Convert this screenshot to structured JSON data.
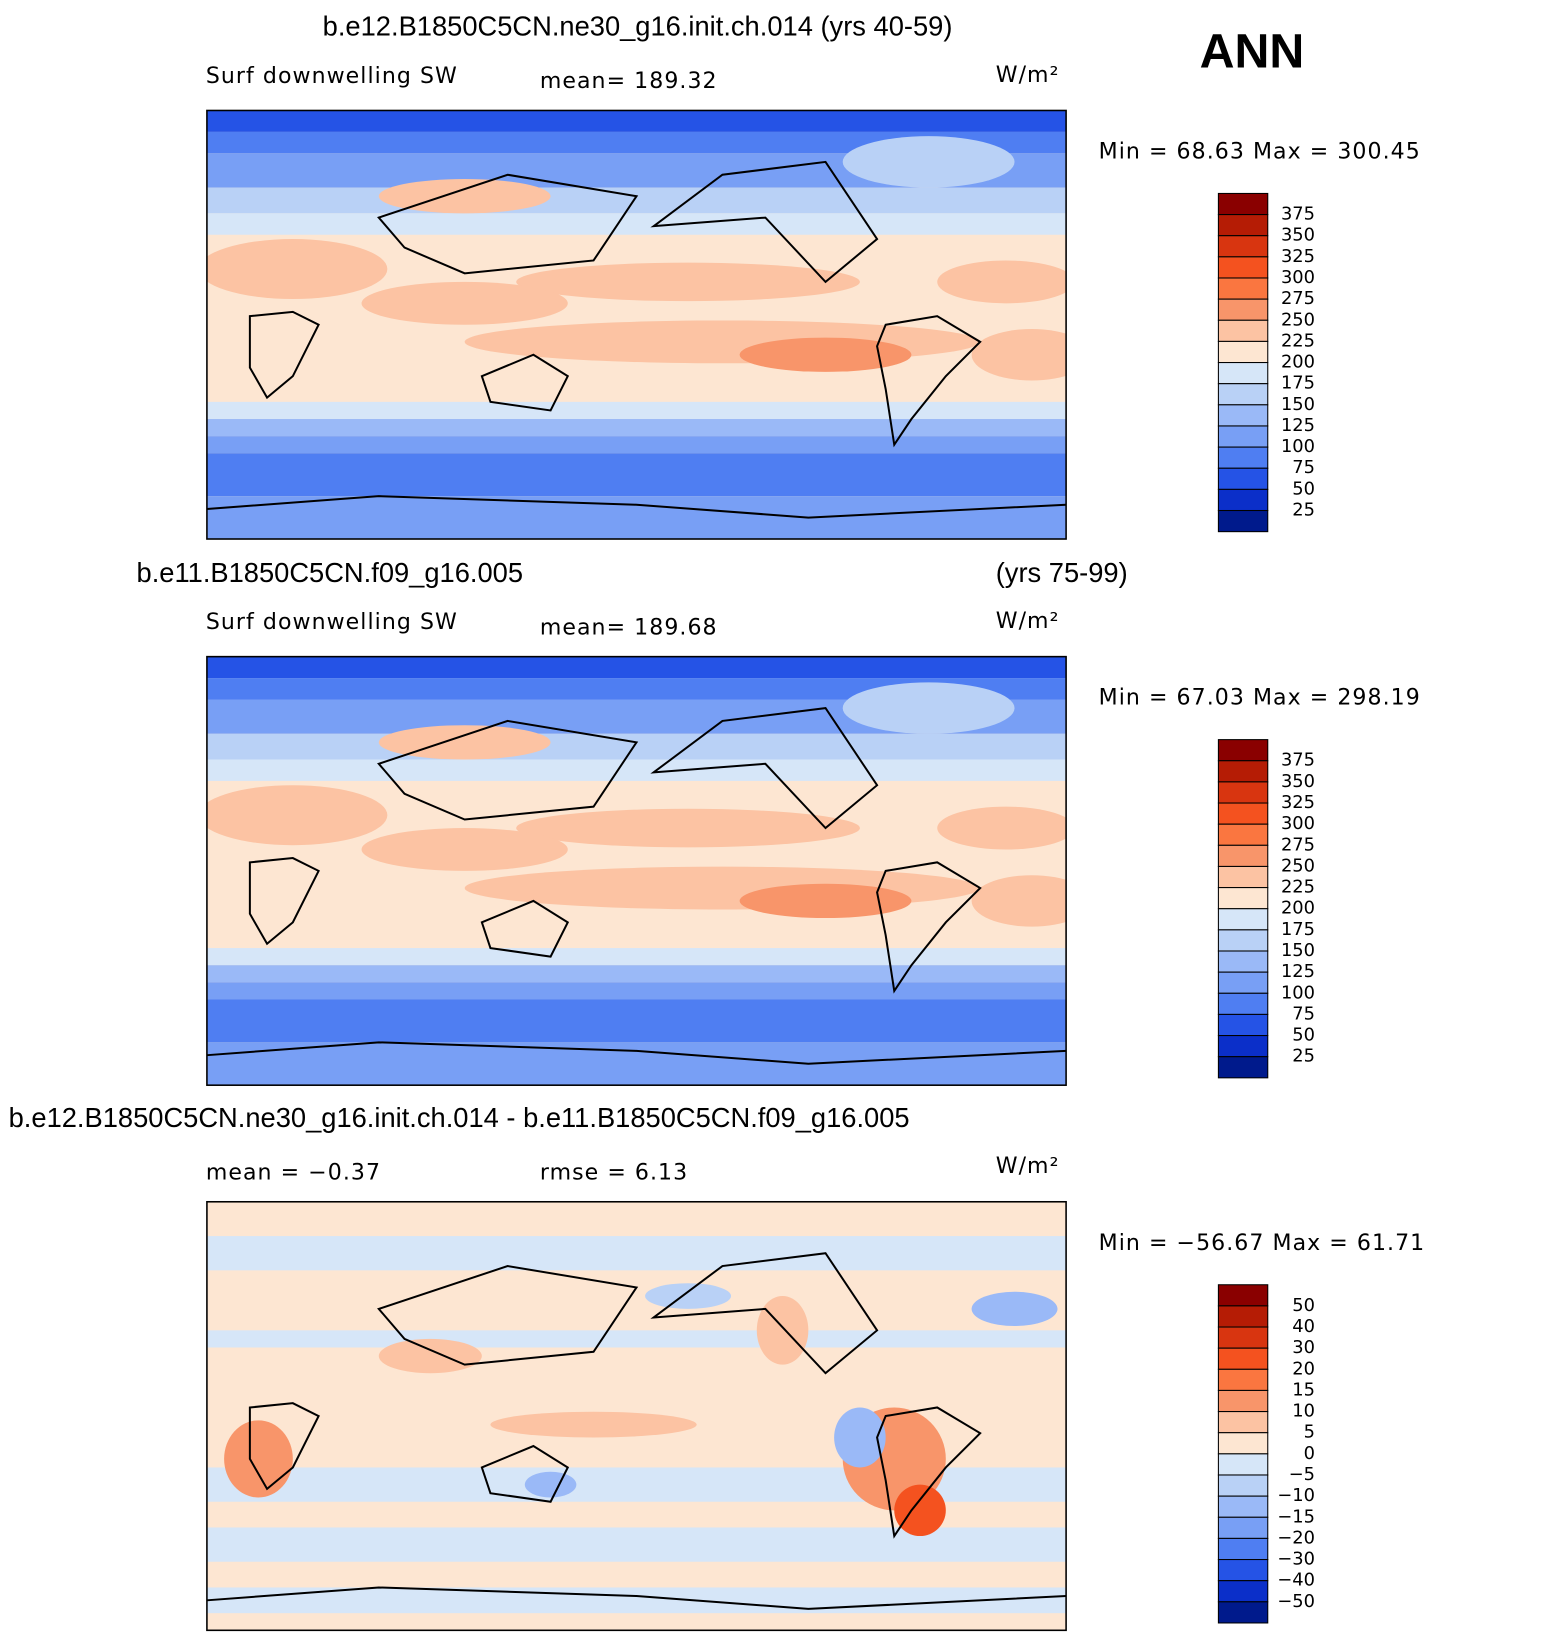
{
  "season": "ANN",
  "panels": [
    {
      "title": "b.e12.B1850C5CN.ne30_g16.init.ch.014 (yrs 40-59)",
      "variable": "Surf downwelling SW",
      "mean": "mean= 189.32",
      "units": "W/m²",
      "range": "Min = 68.63 Max = 300.45",
      "colorbar": {
        "levels": [
          "375",
          "350",
          "325",
          "300",
          "275",
          "250",
          "225",
          "200",
          "175",
          "150",
          "125",
          "100",
          "75",
          "50",
          "25"
        ],
        "colors": [
          "#8a0000",
          "#b51c05",
          "#d83510",
          "#f4521f",
          "#fa7640",
          "#f8956a",
          "#fcc3a3",
          "#fde6d2",
          "#d6e6f8",
          "#b9d1f6",
          "#9ab9f7",
          "#789ff5",
          "#4f7ef2",
          "#2553e6",
          "#0b2fc9",
          "#001a8c"
        ]
      }
    },
    {
      "title": "b.e11.B1850C5CN.f09_g16.005",
      "years": "(yrs 75-99)",
      "variable": "Surf downwelling SW",
      "mean": "mean= 189.68",
      "units": "W/m²",
      "range": "Min = 67.03 Max = 298.19",
      "colorbar": {
        "levels": [
          "375",
          "350",
          "325",
          "300",
          "275",
          "250",
          "225",
          "200",
          "175",
          "150",
          "125",
          "100",
          "75",
          "50",
          "25"
        ],
        "colors": [
          "#8a0000",
          "#b51c05",
          "#d83510",
          "#f4521f",
          "#fa7640",
          "#f8956a",
          "#fcc3a3",
          "#fde6d2",
          "#d6e6f8",
          "#b9d1f6",
          "#9ab9f7",
          "#789ff5",
          "#4f7ef2",
          "#2553e6",
          "#0b2fc9",
          "#001a8c"
        ]
      }
    },
    {
      "title": "b.e12.B1850C5CN.ne30_g16.init.ch.014 - b.e11.B1850C5CN.f09_g16.005",
      "mean": "mean = −0.37",
      "rmse": "rmse = 6.13",
      "units": "W/m²",
      "range": "Min = −56.67 Max = 61.71",
      "colorbar": {
        "levels": [
          "50",
          "40",
          "30",
          "20",
          "15",
          "10",
          "5",
          "0",
          "−5",
          "−10",
          "−15",
          "−20",
          "−30",
          "−40",
          "−50"
        ],
        "colors": [
          "#8a0000",
          "#b51c05",
          "#d83510",
          "#f4521f",
          "#fa7640",
          "#f8956a",
          "#fcc3a3",
          "#fde6d2",
          "#d6e6f8",
          "#b9d1f6",
          "#9ab9f7",
          "#789ff5",
          "#4f7ef2",
          "#2553e6",
          "#0b2fc9",
          "#001a8c"
        ]
      }
    }
  ]
}
